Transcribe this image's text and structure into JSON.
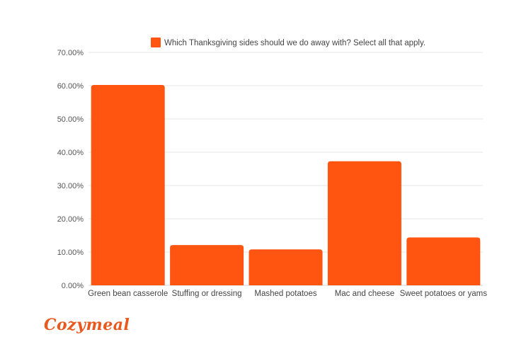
{
  "brand": {
    "name": "Cozymeal",
    "color": "#e8591f"
  },
  "chart_data": {
    "type": "bar",
    "categories": [
      "Green bean casserole",
      "Stuffing or dressing",
      "Mashed potatoes",
      "Mac and cheese",
      "Sweet potatoes or yams"
    ],
    "series": [
      {
        "name": "Which Thanksgiving sides should we do away with? Select all that apply.",
        "color": "#ff5511",
        "values": [
          60.2,
          12.1,
          10.8,
          37.3,
          14.4
        ]
      }
    ],
    "ylim": [
      0,
      70
    ],
    "yticks": [
      0,
      10,
      20,
      30,
      40,
      50,
      60,
      70
    ],
    "y_tick_format": "percent_2dp",
    "grid": true,
    "legend_position": "top",
    "title": "",
    "xlabel": "",
    "ylabel": ""
  }
}
